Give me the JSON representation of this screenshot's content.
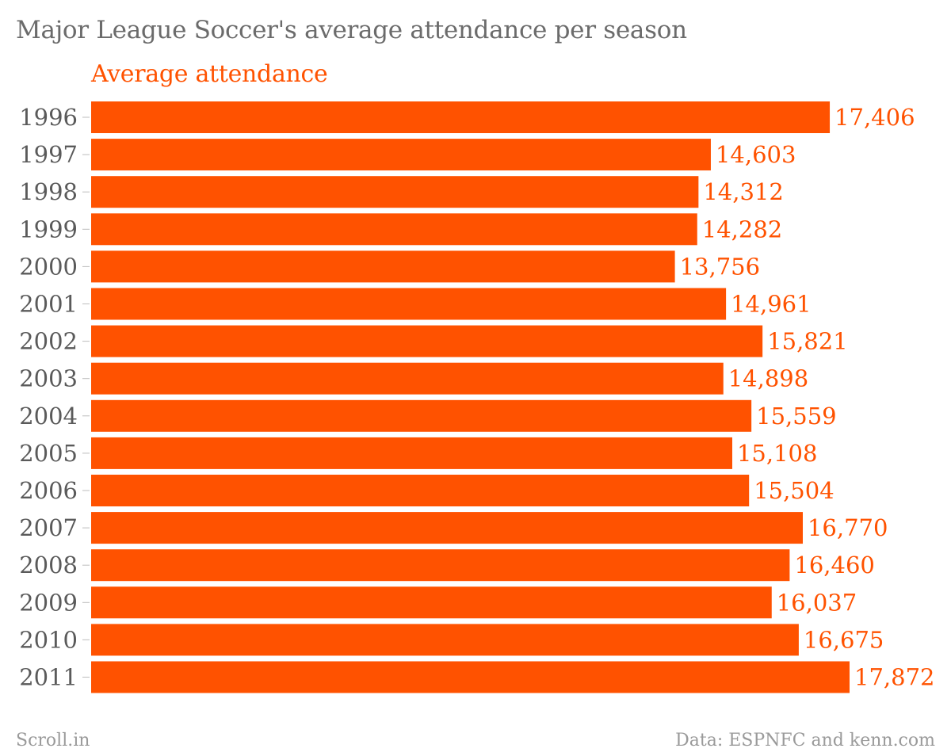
{
  "title": "Major League Soccer's average attendance per season",
  "footer": {
    "source_credit": "Scroll.in",
    "data_credit": "Data: ESPNFC and kenn.com"
  },
  "colors": {
    "bar": "#ff5200",
    "label": "#ff5200",
    "tick": "#5a5a5a"
  },
  "chart_data": {
    "type": "bar",
    "orientation": "horizontal",
    "title": "Major League Soccer's average attendance per season",
    "categories": [
      "1996",
      "1997",
      "1998",
      "1999",
      "2000",
      "2001",
      "2002",
      "2003",
      "2004",
      "2005",
      "2006",
      "2007",
      "2008",
      "2009",
      "2010",
      "2011"
    ],
    "series": [
      {
        "name": "Average attendance",
        "values": [
          17406,
          14603,
          14312,
          14282,
          13756,
          14961,
          15821,
          14898,
          15559,
          15108,
          15504,
          16770,
          16460,
          16037,
          16675,
          17872
        ],
        "data_labels": [
          "17,406",
          "14,603",
          "14,312",
          "14,282",
          "13,756",
          "14,961",
          "15,821",
          "14,898",
          "15,559",
          "15,108",
          "15,504",
          "16,770",
          "16,460",
          "16,037",
          "16,675",
          "17,872"
        ]
      }
    ],
    "xlim": [
      0,
      17872
    ],
    "grid": false,
    "legend": "top-left"
  }
}
